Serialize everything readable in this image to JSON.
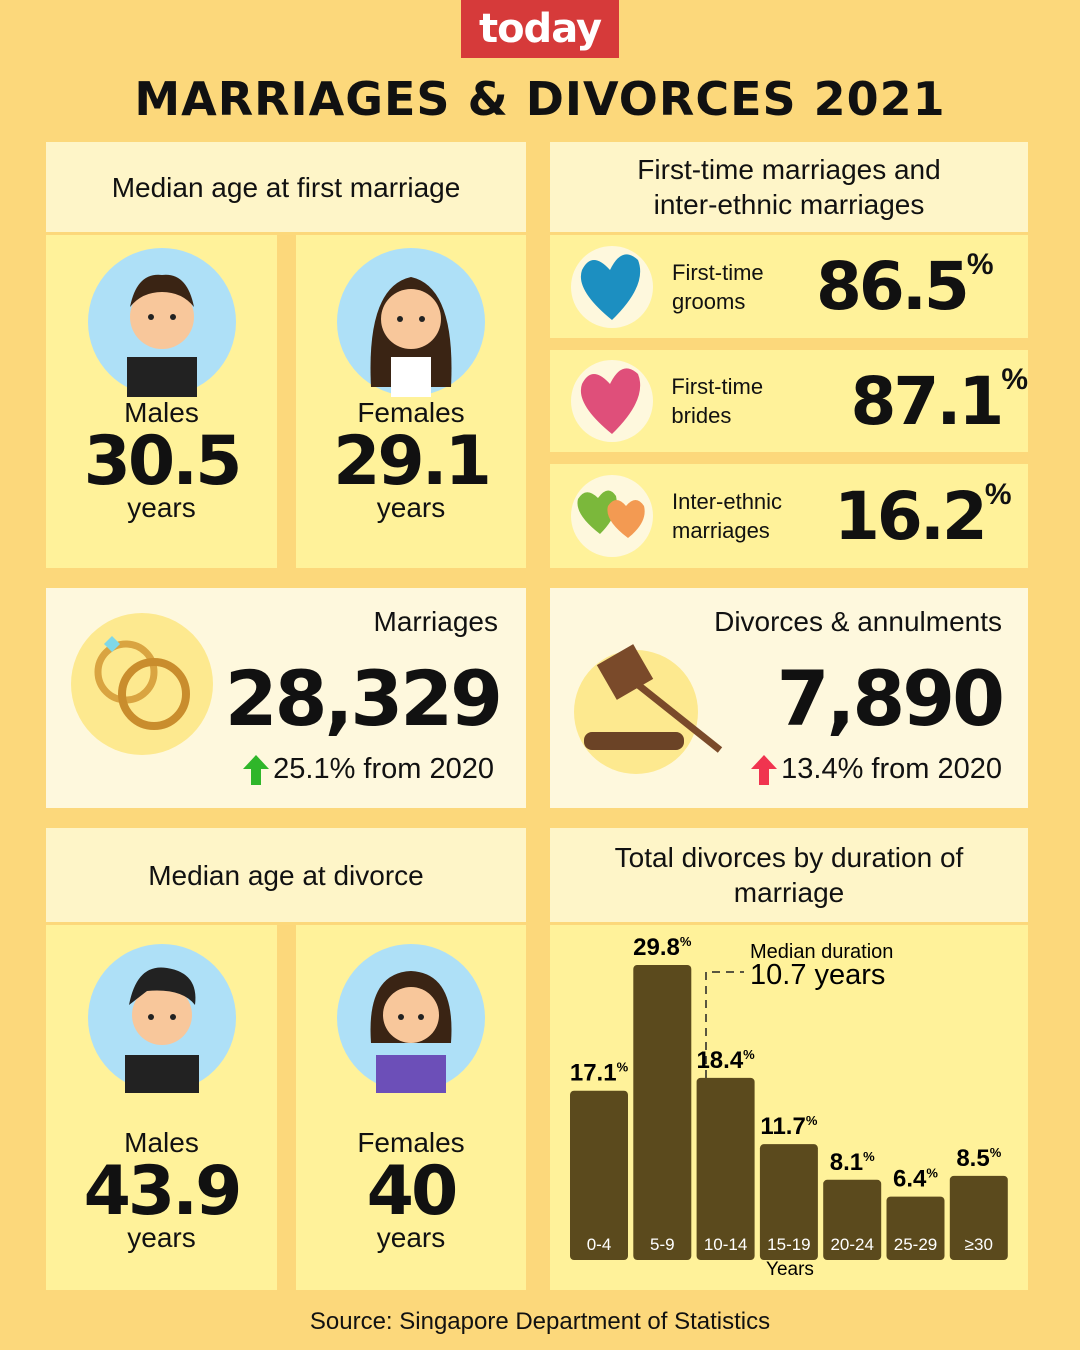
{
  "brand": "today",
  "title": "MARRIAGES & DIVORCES 2021",
  "first_marriage_age": {
    "heading": "Median age at first marriage",
    "males": {
      "label": "Males",
      "value": "30.5",
      "unit": "years"
    },
    "females": {
      "label": "Females",
      "value": "29.1",
      "unit": "years"
    }
  },
  "first_time": {
    "heading": "First-time marriages and inter-ethnic marriages",
    "items": [
      {
        "label": "First-time grooms",
        "value": "86.5",
        "unit": "%"
      },
      {
        "label": "First-time brides",
        "value": "87.1",
        "unit": "%"
      },
      {
        "label": "Inter-ethnic marriages",
        "value": "16.2",
        "unit": "%"
      }
    ]
  },
  "marriages": {
    "heading": "Marriages",
    "value": "28,329",
    "change": "25.1% from 2020"
  },
  "divorces": {
    "heading": "Divorces & annulments",
    "value": "7,890",
    "change": "13.4% from 2020"
  },
  "divorce_age": {
    "heading": "Median age at divorce",
    "males": {
      "label": "Males",
      "value": "43.9",
      "unit": "years"
    },
    "females": {
      "label": "Females",
      "value": "40",
      "unit": "years"
    }
  },
  "chart_data": {
    "type": "bar",
    "title": "Total divorces by duration of marriage",
    "categories": [
      "0-4",
      "5-9",
      "10-14",
      "15-19",
      "20-24",
      "25-29",
      "≥30"
    ],
    "values": [
      17.1,
      29.8,
      18.4,
      11.7,
      8.1,
      6.4,
      8.5
    ],
    "value_labels": [
      "17.1%",
      "29.8%",
      "18.4%",
      "11.7%",
      "8.1%",
      "6.4%",
      "8.5%"
    ],
    "x_label": "Years",
    "color": "#5b4a1d",
    "annotation": {
      "label": "Median duration",
      "value": "10.7 years"
    }
  },
  "source": "Source: Singapore Department of Statistics"
}
